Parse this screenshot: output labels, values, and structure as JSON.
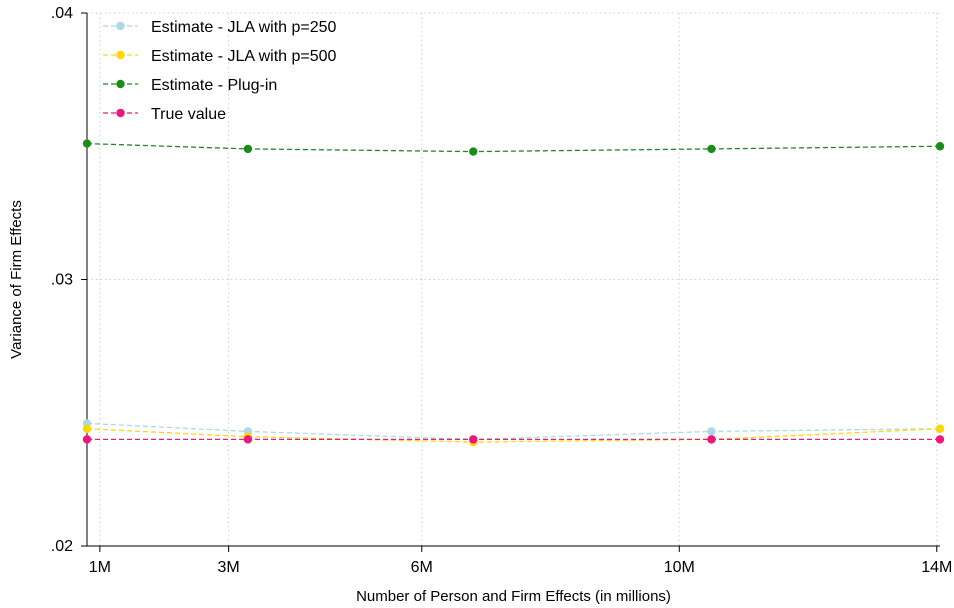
{
  "chart_data": {
    "type": "line",
    "title": "",
    "xlabel": "Number of Person and Firm Effects (in millions)",
    "ylabel": "Variance of Firm Effects",
    "x": [
      0.8,
      3.3,
      6.8,
      10.5,
      14.05
    ],
    "xlim": [
      0.8,
      14.05
    ],
    "ylim": [
      0.02,
      0.04
    ],
    "x_ticks": [
      {
        "value": 1,
        "label": "1M"
      },
      {
        "value": 3,
        "label": "3M"
      },
      {
        "value": 6,
        "label": "6M"
      },
      {
        "value": 10,
        "label": "10M"
      },
      {
        "value": 14,
        "label": "14M"
      }
    ],
    "y_ticks": [
      {
        "value": 0.02,
        "label": ".02"
      },
      {
        "value": 0.03,
        "label": ".03"
      },
      {
        "value": 0.04,
        "label": ".04"
      }
    ],
    "grid": true,
    "legend_position": "top-left",
    "series": [
      {
        "name": "Estimate - JLA with p=250",
        "color": "#add8e6",
        "values": [
          0.0246,
          0.0243,
          0.024,
          0.0243,
          0.0244
        ]
      },
      {
        "name": "Estimate - JLA with p=500",
        "color": "#ffd700",
        "values": [
          0.0244,
          0.0241,
          0.0239,
          0.024,
          0.0244
        ]
      },
      {
        "name": "Estimate - Plug-in",
        "color": "#1a8c1a",
        "values": [
          0.0351,
          0.0349,
          0.0348,
          0.0349,
          0.035
        ]
      },
      {
        "name": "True value",
        "color": "#f0157a",
        "values": [
          0.024,
          0.024,
          0.024,
          0.024,
          0.024
        ]
      }
    ]
  }
}
